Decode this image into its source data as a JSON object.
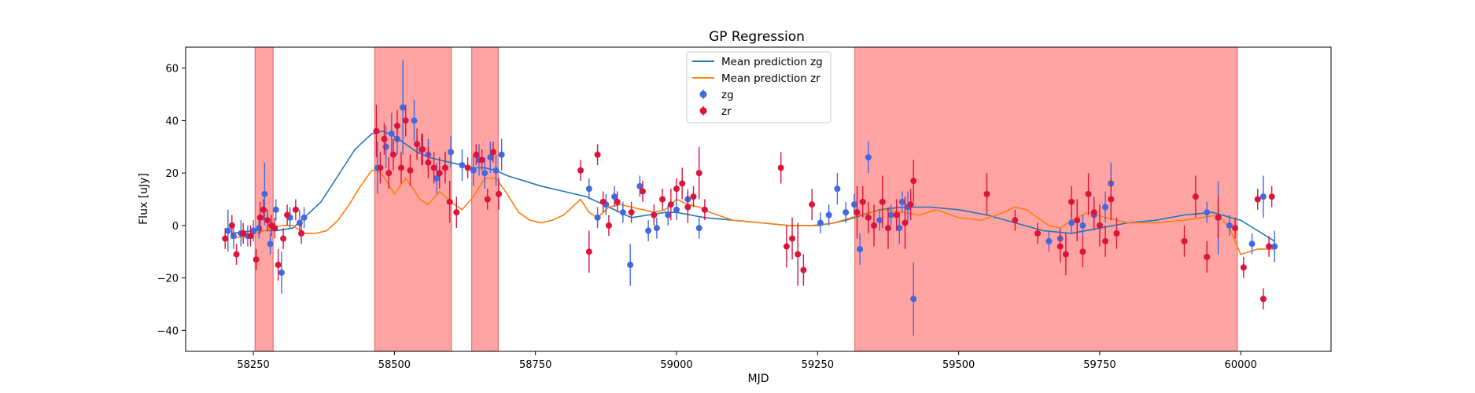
{
  "chart_data": {
    "type": "scatter",
    "title": "GP Regression",
    "xlabel": "MJD",
    "ylabel": "Flux [uJy]",
    "xlim": [
      58130,
      60160
    ],
    "ylim": [
      -48,
      68
    ],
    "xticks": [
      58250,
      58500,
      58750,
      59000,
      59250,
      59500,
      59750,
      60000
    ],
    "yticks": [
      -40,
      -20,
      0,
      20,
      40,
      60
    ],
    "grid": false,
    "legend_position": "top-center",
    "legend": [
      "Mean prediction zg",
      "Mean prediction zr",
      "zg",
      "zr"
    ],
    "colors": {
      "zg_line": "#1f77b4",
      "zr_line": "#ff7f0e",
      "zg_points": "#4169e1",
      "zr_points": "#dc143c",
      "shading": "#ff6666"
    },
    "shaded_regions": [
      [
        58253,
        58285
      ],
      [
        58465,
        58601
      ],
      [
        58637,
        58684
      ],
      [
        59316,
        59994
      ]
    ],
    "series": [
      {
        "name": "Mean prediction zg",
        "kind": "line",
        "x": [
          58210,
          58250,
          58290,
          58320,
          58340,
          58370,
          58400,
          58430,
          58460,
          58480,
          58500,
          58520,
          58540,
          58560,
          58580,
          58600,
          58620,
          58640,
          58660,
          58680,
          58700,
          58730,
          58760,
          58800,
          58840,
          58860,
          58880,
          58900,
          58920,
          58950,
          58980,
          59000,
          59050,
          59100,
          59150,
          59200,
          59250,
          59280,
          59300,
          59330,
          59360,
          59400,
          59450,
          59500,
          59550,
          59600,
          59650,
          59700,
          59750,
          59800,
          59850,
          59900,
          59950,
          60000,
          60030,
          60060
        ],
        "y": [
          -3,
          -2,
          -2,
          -1,
          3,
          9,
          19,
          29,
          35,
          36,
          34,
          31,
          28,
          26,
          25,
          24,
          23,
          22,
          22,
          21,
          19,
          17,
          15,
          13,
          11,
          9,
          7,
          5,
          3,
          4,
          5,
          5,
          3,
          2,
          1,
          0,
          0,
          1,
          2,
          4,
          6,
          7,
          7,
          6,
          4,
          1,
          -2,
          -3,
          -1,
          1,
          2,
          4,
          5,
          2,
          -2,
          -6
        ]
      },
      {
        "name": "Mean prediction zr",
        "kind": "line",
        "x": [
          58210,
          58240,
          58270,
          58300,
          58320,
          58340,
          58360,
          58380,
          58400,
          58420,
          58440,
          58460,
          58470,
          58480,
          58500,
          58510,
          58520,
          58530,
          58545,
          58560,
          58580,
          58600,
          58620,
          58640,
          58660,
          58680,
          58700,
          58720,
          58740,
          58760,
          58780,
          58800,
          58820,
          58830,
          58845,
          58860,
          58880,
          58900,
          58920,
          58940,
          58960,
          58980,
          59000,
          59020,
          59040,
          59060,
          59100,
          59150,
          59200,
          59240,
          59280,
          59310,
          59340,
          59370,
          59400,
          59430,
          59460,
          59500,
          59540,
          59580,
          59600,
          59620,
          59640,
          59660,
          59680,
          59700,
          59730,
          59760,
          59800,
          59850,
          59900,
          59930,
          59960,
          59980,
          60000,
          60030,
          60060
        ],
        "y": [
          -5,
          -4,
          -2,
          0,
          0,
          -3,
          -3,
          -2,
          2,
          8,
          15,
          21,
          21,
          19,
          12,
          15,
          18,
          15,
          10,
          8,
          13,
          9,
          6,
          11,
          18,
          18,
          12,
          5,
          2,
          1,
          2,
          4,
          8,
          10,
          5,
          3,
          7,
          8,
          7,
          6,
          5,
          6,
          10,
          8,
          7,
          5,
          2,
          1,
          0,
          0,
          1,
          3,
          5,
          6,
          5,
          4,
          6,
          3,
          2,
          5,
          7,
          6,
          3,
          0,
          -1,
          2,
          5,
          3,
          1,
          1,
          2,
          3,
          4,
          -1,
          -11,
          -9,
          -9
        ]
      },
      {
        "name": "zg",
        "kind": "errorbar",
        "x": [
          58205,
          58215,
          58228,
          58240,
          58250,
          58260,
          58270,
          58280,
          58290,
          58300,
          58315,
          58332,
          58340,
          58470,
          58485,
          58495,
          58505,
          58515,
          58535,
          58548,
          58560,
          58575,
          58590,
          58600,
          58620,
          58640,
          58650,
          58660,
          58670,
          58680,
          58690,
          58845,
          58860,
          58875,
          58890,
          58905,
          58918,
          58935,
          58950,
          58965,
          58985,
          59000,
          59020,
          59040,
          59255,
          59270,
          59285,
          59300,
          59315,
          59325,
          59340,
          59360,
          59380,
          59395,
          59400,
          59410,
          59420,
          59660,
          59680,
          59700,
          59720,
          59740,
          59760,
          59770,
          59940,
          59960,
          59980,
          60020,
          60040,
          60060
        ],
        "y": [
          -2,
          -4,
          -3,
          -4,
          -2,
          -1,
          12,
          -7,
          6,
          -18,
          3,
          1,
          3,
          22,
          30,
          35,
          33,
          45,
          40,
          29,
          27,
          18,
          22,
          28,
          23,
          21,
          25,
          20,
          26,
          21,
          27,
          14,
          3,
          8,
          11,
          5,
          -15,
          15,
          -2,
          -1,
          4,
          6,
          10,
          -1,
          1,
          4,
          14,
          5,
          8,
          -9,
          26,
          2,
          4,
          -1,
          9,
          7,
          -28,
          -6,
          -5,
          1,
          0,
          4,
          7,
          16,
          5,
          3,
          0,
          -7,
          11,
          -8
        ],
        "err": [
          8,
          5,
          5,
          4,
          4,
          4,
          12,
          4,
          4,
          8,
          4,
          5,
          4,
          10,
          8,
          8,
          6,
          18,
          8,
          6,
          6,
          6,
          6,
          6,
          6,
          6,
          6,
          6,
          6,
          6,
          6,
          4,
          4,
          4,
          4,
          4,
          8,
          4,
          4,
          4,
          4,
          4,
          4,
          4,
          4,
          4,
          6,
          4,
          4,
          6,
          6,
          4,
          4,
          6,
          4,
          6,
          14,
          4,
          4,
          4,
          4,
          6,
          6,
          8,
          4,
          14,
          4,
          4,
          8,
          6
        ]
      },
      {
        "name": "zr",
        "kind": "errorbar",
        "x": [
          58200,
          58212,
          58220,
          58232,
          58245,
          58255,
          58262,
          58268,
          58275,
          58282,
          58288,
          58294,
          58303,
          58310,
          58325,
          58335,
          58468,
          58475,
          58482,
          58490,
          58498,
          58505,
          58512,
          58520,
          58528,
          58540,
          58550,
          58560,
          58570,
          58580,
          58590,
          58598,
          58610,
          58630,
          58645,
          58655,
          58665,
          58675,
          58685,
          58830,
          58845,
          58860,
          58870,
          58880,
          58895,
          58920,
          58940,
          58960,
          58975,
          58990,
          59000,
          59010,
          59020,
          59030,
          59040,
          59050,
          59185,
          59195,
          59205,
          59215,
          59225,
          59240,
          59320,
          59330,
          59340,
          59350,
          59365,
          59375,
          59390,
          59405,
          59415,
          59420,
          59550,
          59600,
          59640,
          59680,
          59690,
          59700,
          59710,
          59720,
          59730,
          59740,
          59750,
          59760,
          59770,
          59780,
          59900,
          59920,
          59940,
          59960,
          59990,
          60005,
          60030,
          60040,
          60050,
          60055
        ],
        "y": [
          -5,
          0,
          -11,
          -3,
          -4,
          -13,
          3,
          6,
          2,
          0,
          -1,
          -15,
          -5,
          4,
          6,
          -3,
          36,
          22,
          33,
          20,
          27,
          38,
          22,
          40,
          21,
          31,
          29,
          24,
          22,
          20,
          22,
          9,
          5,
          22,
          27,
          25,
          10,
          28,
          12,
          21,
          -10,
          27,
          9,
          0,
          9,
          5,
          13,
          4,
          10,
          8,
          14,
          16,
          7,
          11,
          20,
          6,
          22,
          -8,
          -5,
          -11,
          -17,
          8,
          5,
          9,
          3,
          0,
          9,
          -1,
          4,
          1,
          8,
          17,
          12,
          2,
          -3,
          -8,
          -11,
          9,
          2,
          -10,
          12,
          5,
          0,
          -6,
          10,
          -3,
          -6,
          11,
          -12,
          3,
          -1,
          -16,
          10,
          -28,
          -8,
          11
        ],
        "err": [
          4,
          4,
          4,
          4,
          4,
          4,
          6,
          4,
          4,
          4,
          4,
          6,
          4,
          4,
          4,
          4,
          10,
          6,
          6,
          6,
          6,
          6,
          6,
          6,
          6,
          6,
          6,
          6,
          6,
          6,
          6,
          8,
          6,
          4,
          4,
          4,
          4,
          4,
          6,
          4,
          8,
          4,
          4,
          4,
          4,
          4,
          4,
          4,
          4,
          6,
          4,
          6,
          6,
          4,
          10,
          4,
          6,
          8,
          8,
          12,
          6,
          6,
          10,
          6,
          6,
          8,
          10,
          8,
          6,
          10,
          6,
          8,
          8,
          4,
          4,
          6,
          8,
          6,
          8,
          6,
          8,
          6,
          8,
          6,
          8,
          6,
          6,
          8,
          6,
          8,
          4,
          4,
          4,
          4,
          4,
          4
        ]
      }
    ]
  }
}
